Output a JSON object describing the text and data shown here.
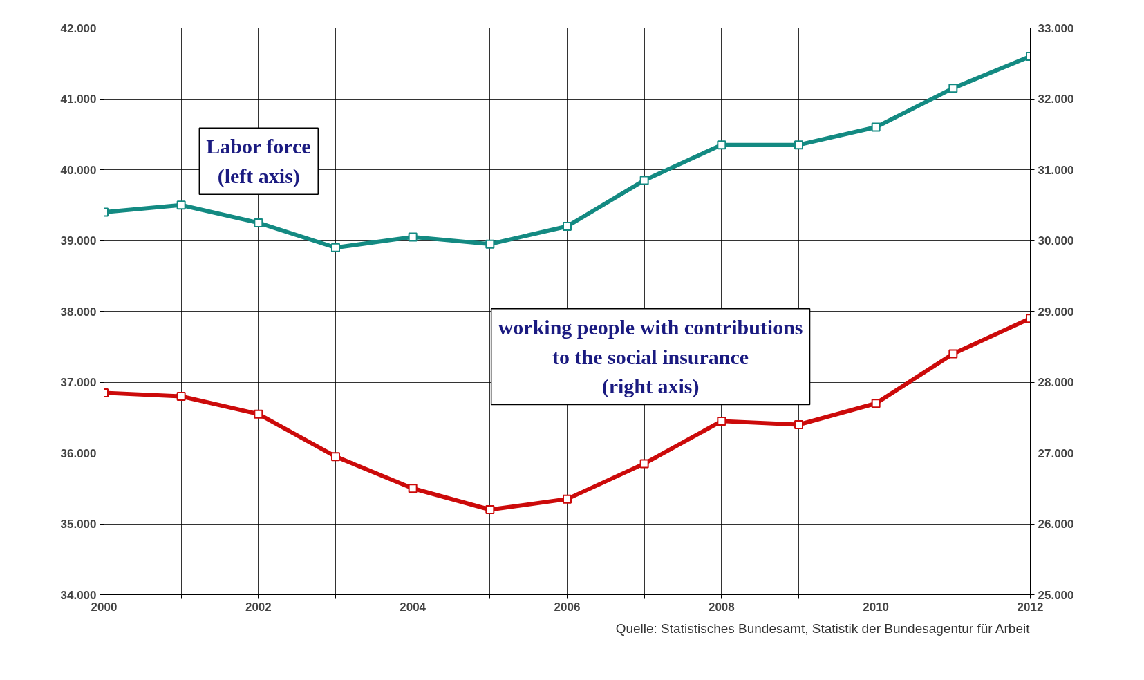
{
  "chart_data": {
    "type": "line",
    "x": [
      2000,
      2001,
      2002,
      2003,
      2004,
      2005,
      2006,
      2007,
      2008,
      2009,
      2010,
      2011,
      2012
    ],
    "series": [
      {
        "name": "Labor force\n(left axis)",
        "color": "#138a82",
        "values": [
          39400,
          39500,
          39250,
          38900,
          39050,
          38950,
          39200,
          39850,
          40350,
          40350,
          40600,
          41150,
          41600
        ]
      },
      {
        "name": "working people with contributions\nto the social insurance\n(right axis)",
        "color": "#cc0a0a",
        "axis": "y2",
        "values": [
          27850,
          27800,
          27550,
          26950,
          26500,
          26200,
          26350,
          26850,
          27450,
          27400,
          27700,
          28400,
          28900
        ]
      }
    ],
    "xlim": [
      2000,
      2012
    ],
    "xticks": [
      2000,
      {
        "value": 2001,
        "label": null
      },
      2002,
      {
        "value": 2003,
        "label": null
      },
      2004,
      {
        "value": 2005,
        "label": null
      },
      2006,
      {
        "value": 2007,
        "label": null
      },
      2008,
      {
        "value": 2009,
        "label": null
      },
      2010,
      {
        "value": 2011,
        "label": null
      },
      2012
    ],
    "ylim": [
      34000,
      42000
    ],
    "yticks": [
      {
        "value": 34000,
        "label": "34.000"
      },
      {
        "value": 35000,
        "label": "35.000"
      },
      {
        "value": 36000,
        "label": "36.000"
      },
      {
        "value": 37000,
        "label": "37.000"
      },
      {
        "value": 38000,
        "label": "38.000"
      },
      {
        "value": 39000,
        "label": "39.000"
      },
      {
        "value": 40000,
        "label": "40.000"
      },
      {
        "value": 41000,
        "label": "41.000"
      },
      {
        "value": 42000,
        "label": "42.000"
      }
    ],
    "y2lim": [
      25000,
      33000
    ],
    "y2ticks": [
      {
        "value": 25000,
        "label": "25.000"
      },
      {
        "value": 26000,
        "label": "26.000"
      },
      {
        "value": 27000,
        "label": "27.000"
      },
      {
        "value": 28000,
        "label": "28.000"
      },
      {
        "value": 29000,
        "label": "29.000"
      },
      {
        "value": 30000,
        "label": "30.000"
      },
      {
        "value": 31000,
        "label": "31.000"
      },
      {
        "value": 32000,
        "label": "32.000"
      },
      {
        "value": 33000,
        "label": "33.000"
      }
    ],
    "grid": true,
    "marker": "square",
    "line_style": "solid",
    "annotations": [
      "Quelle: Statistisches Bundesamt, Statistik der Bundesagentur für Arbeit"
    ]
  }
}
